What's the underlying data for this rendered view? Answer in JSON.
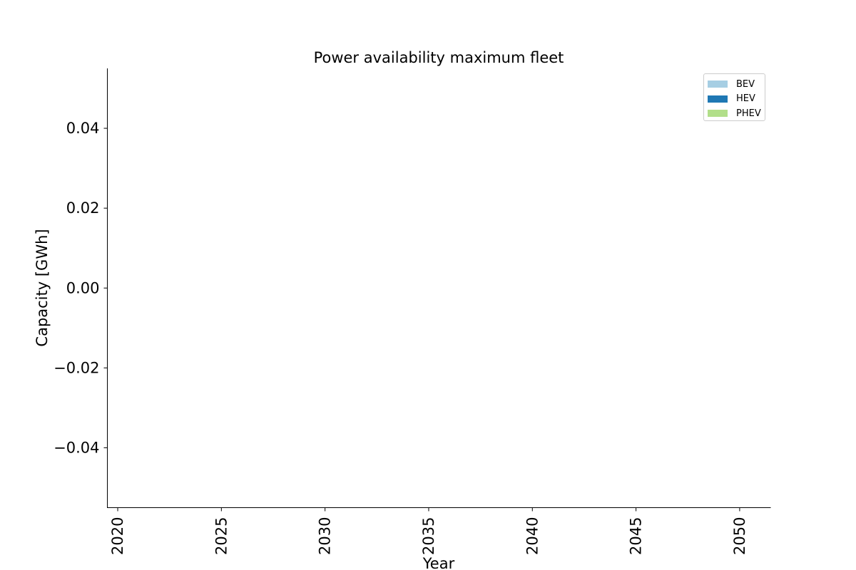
{
  "chart_data": {
    "type": "area",
    "title": "Power availability maximum fleet",
    "xlabel": "Year",
    "ylabel": "Capacity [GWh]",
    "x": [
      2020,
      2025,
      2030,
      2035,
      2040,
      2045,
      2050
    ],
    "xlim": [
      2019.5,
      2051.5
    ],
    "ylim": [
      -0.055,
      0.055
    ],
    "x_ticks": [
      "2020",
      "2025",
      "2030",
      "2035",
      "2040",
      "2045",
      "2050"
    ],
    "y_ticks": [
      0.04,
      0.02,
      0.0,
      -0.02,
      -0.04
    ],
    "y_tick_labels": [
      "0.04",
      "0.02",
      "0.00",
      "−0.02",
      "−0.04"
    ],
    "x_tick_rotation": "vertical",
    "grid": false,
    "legend_position": "top-right",
    "series": [
      {
        "name": "BEV",
        "color": "#a6cee3",
        "values": [
          0,
          0,
          0,
          0,
          0,
          0,
          0
        ]
      },
      {
        "name": "HEV",
        "color": "#1f78b4",
        "values": [
          0,
          0,
          0,
          0,
          0,
          0,
          0
        ]
      },
      {
        "name": "PHEV",
        "color": "#b2df8a",
        "values": [
          0,
          0,
          0,
          0,
          0,
          0,
          0
        ]
      }
    ]
  }
}
